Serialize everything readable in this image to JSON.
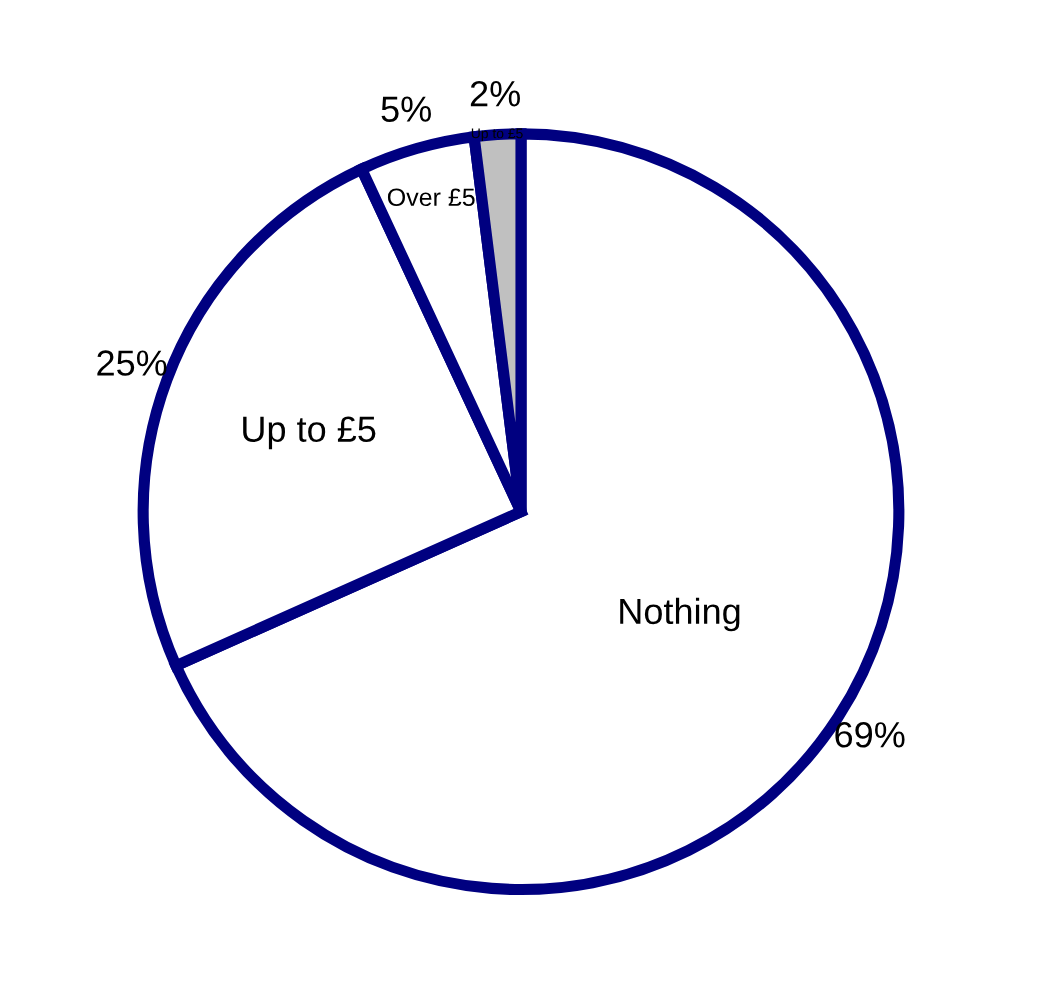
{
  "chart_data": {
    "type": "pie",
    "categories": [
      "Nothing",
      "Up to £5",
      "Over £5",
      "Up to £5"
    ],
    "values": [
      69,
      25,
      5,
      2
    ],
    "colors": [
      "#ffffff",
      "#ffffff",
      "#ffffff",
      "#c0c0c0"
    ],
    "value_labels": [
      "69%",
      "25%",
      "5%",
      "2%"
    ],
    "legend": false
  }
}
